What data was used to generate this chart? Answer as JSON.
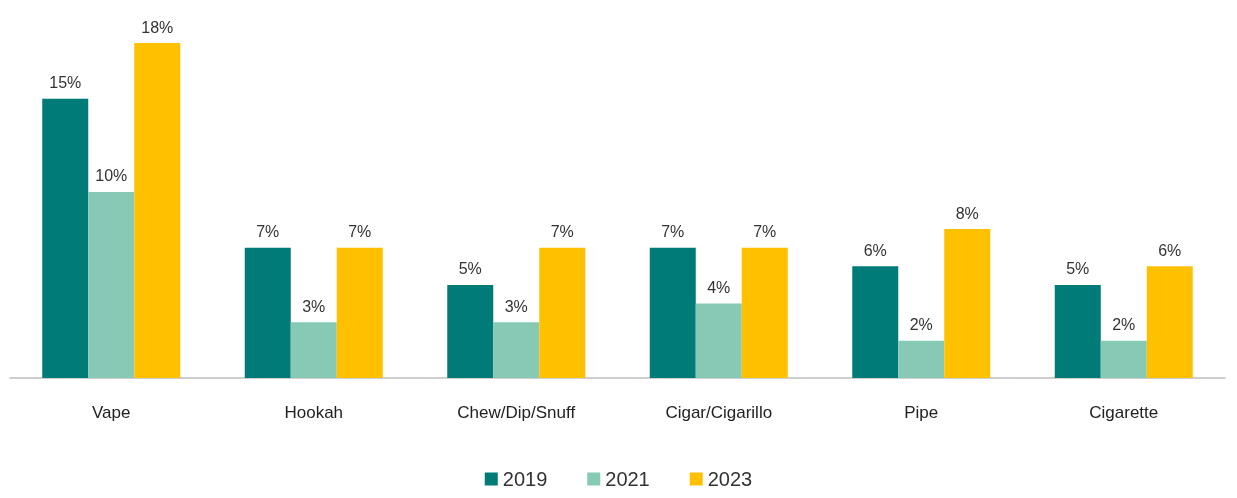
{
  "chart_data": {
    "type": "bar",
    "categories": [
      "Vape",
      "Hookah",
      "Chew/Dip/Snuff",
      "Cigar/Cigarillo",
      "Pipe",
      "Cigarette"
    ],
    "series": [
      {
        "name": "2019",
        "color": "#007b78",
        "values": [
          15,
          7,
          5,
          7,
          6,
          5
        ],
        "value_labels": [
          "15%",
          "7%",
          "5%",
          "7%",
          "6%",
          "5%"
        ]
      },
      {
        "name": "2021",
        "color": "#86c9b5",
        "values": [
          10,
          3,
          3,
          4,
          2,
          2
        ],
        "value_labels": [
          "10%",
          "3%",
          "3%",
          "4%",
          "2%",
          "2%"
        ]
      },
      {
        "name": "2023",
        "color": "#ffc000",
        "values": [
          18,
          7,
          7,
          7,
          8,
          6
        ],
        "value_labels": [
          "18%",
          "7%",
          "7%",
          "7%",
          "8%",
          "6%"
        ]
      }
    ],
    "grid": false,
    "legend": "bottom"
  }
}
